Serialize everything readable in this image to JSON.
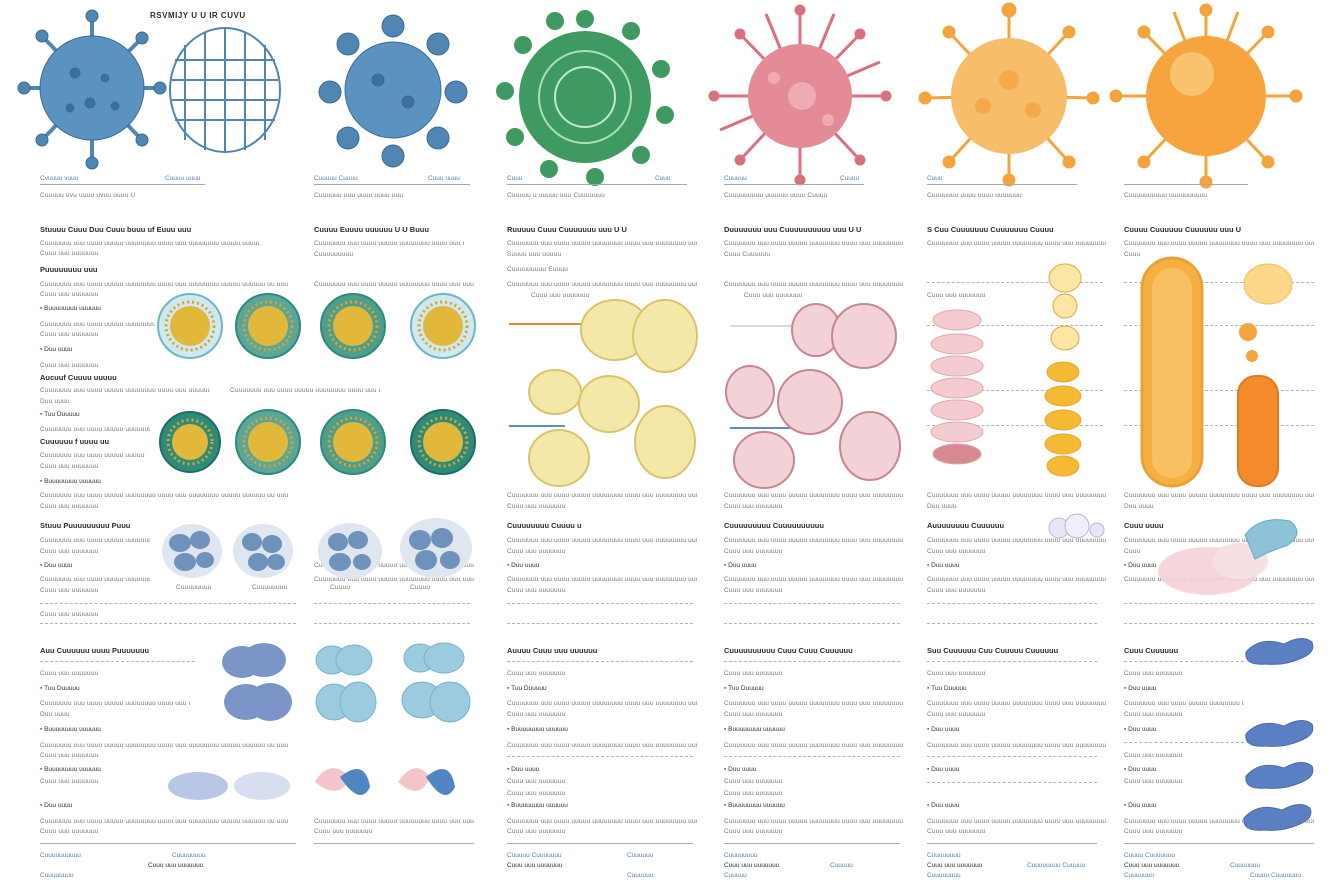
{
  "title": "RSVMIJY U U IR CUVU",
  "colors": {
    "blue": "#4f86b3",
    "green": "#3f9a62",
    "pink": "#d9707f",
    "orange": "#f4a43b",
    "teal": "#2e8b7a",
    "yellow": "#e9d98a",
    "lavender": "#7b95c9"
  },
  "columns": [
    {
      "caption_left": "Cvuuuu vuuu",
      "caption_right": "Cuuuu uuuu",
      "caption_line": "Cuuuuu uvu uuuu uvuu uuuu U",
      "head1": "Stuuuu Cuuu Duu Cuuu buuu uf Euuu uuu",
      "sub1": "Puuuuuuuu uuu",
      "head2": "Aucuuf Cuuuu uuuuu",
      "head3": "Cuuuuuu f uuuu uu",
      "head4": "Stuuu Puuuuuuuuu Puuu",
      "head5": "Auu Cuuuuuu uuuu Puuuuuuu",
      "foot1": "Cuuuuuuuuuu",
      "foot2": "Cuuuuuuuu"
    },
    {
      "caption_left": "Cuuuuu Cuuuu",
      "caption_right": "Cuuu uuuu",
      "caption_line": "Cuuuuuu uuu uuuu uuuu uuu",
      "head1": "Cuuuu Euuuu uuuuuu U U Buuu",
      "sub1": "Cuuuuuuuuu",
      "head2": "",
      "head3": "",
      "head4": "",
      "head5": "",
      "foot1": "Cuuuu",
      "foot2": "Cuuu Euuu"
    },
    {
      "caption_left": "Cuuu",
      "caption_right": "Cuuu",
      "caption_line": "Cuuuuu u uuuuu uuu Cuuuuuuu",
      "head1": "Ruuuuu Cuuu Cuuuuuuu uuu U U",
      "sub1": "Suuuu uuu uuuuu",
      "head2": "Cuuuuuuuuu Euuuu",
      "head3": "",
      "head4": "Cuuuuuuuu Cuuuu u",
      "head5": "Auuuu Cuuu uuu uuuuuu",
      "foot1": "Cuuuuu Cuuuuuuu",
      "foot2": "Cuuuuuu"
    },
    {
      "caption_left": "Cuuuuu",
      "caption_right": "Cuuuu",
      "caption_line": "Cuuuuuuuuu uuuuuu uuuu Cuuuu",
      "head1": "Duuuuuuu uuu Cuuuuuuuuuu uuu U U",
      "sub1": "Cuuu Cuuuuuu",
      "head2": "",
      "head3": "",
      "head4": "Cuuuuuuuuu Cuuuuuuuuuu",
      "head5": "Cuuuuuuuuuu Cuuu Cuuu Cuuuuuu",
      "foot1": "Cuuuuuuuu",
      "foot2": "Cuuuuu"
    },
    {
      "caption_left": "Cuuu",
      "caption_right": "",
      "caption_line": "Cuuuuuuu uuuu uuuu uuuuuuu",
      "head1": "S Cuu Cuuuuuuu Cuuuuuuu Cuuuu",
      "sub1": "",
      "head2": "",
      "head3": "",
      "head4": "Auuuuuuuu Cuuuuuu",
      "head5": "Suu Cuuuuuu Cuu Cuuuuu Cuuuuuu",
      "foot1": "Cuuuuuuuu",
      "foot2": "Cuuuuuuuu Cuuuuu"
    },
    {
      "caption_left": "",
      "caption_right": "",
      "caption_line": "Cuuuuuuuuuu uuuuuuuuuu",
      "head1": "Cuuuu Cuuuuuu Cuuuuuu uuu U",
      "sub1": "Cuuu",
      "head2": "",
      "head3": "",
      "head4": "Cuuu uuuu",
      "head5": "Cuuu Cuuuuuu",
      "foot1": "Cuuuu Cuuuuuuu",
      "foot2": "Cuuuuuuu"
    }
  ],
  "filler_line": "Cuuuuuuu uuu uuuu uuuuu uuuuuuuu uuuu uuu uuuuuuuu uuuuu uuuuuu uu uuu",
  "short_line": "Cuuu uuu uuuuuuu",
  "bullet_a": "Buuuuuuuu uuuuuu",
  "bullet_b": "Duu uuuu",
  "bullet_c": "Tuu Duuuuu"
}
